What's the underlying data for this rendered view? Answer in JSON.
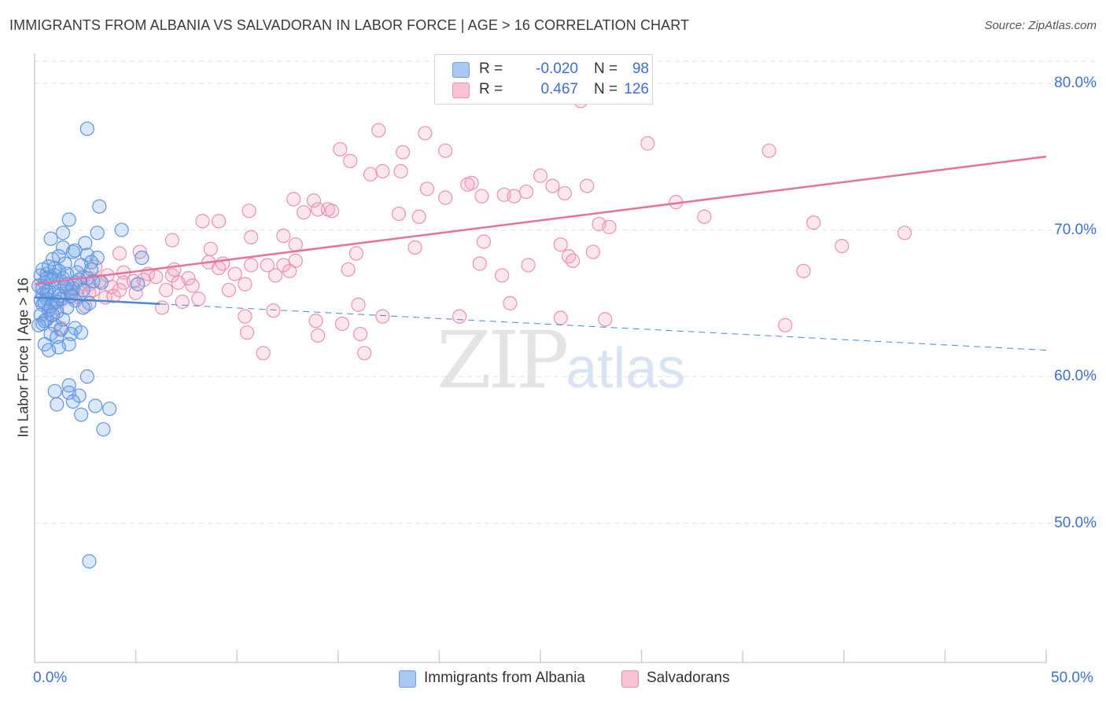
{
  "title": "IMMIGRANTS FROM ALBANIA VS SALVADORAN IN LABOR FORCE | AGE > 16 CORRELATION CHART",
  "source": "Source: ZipAtlas.com",
  "watermark": {
    "zip": "ZIP",
    "atlas": "atlas"
  },
  "legend": {
    "r_label": "R =",
    "n_label": "N =",
    "rows": [
      {
        "r": "-0.020",
        "n": "98",
        "color": "#a9c8f2",
        "stroke": "#6d9de0"
      },
      {
        "r": "0.467",
        "n": "126",
        "color": "#f8c2d3",
        "stroke": "#ec8fae"
      }
    ]
  },
  "colors": {
    "blue": "#4a86d8",
    "pink": "#e8719a",
    "axis_text": "#3b6fd1"
  },
  "chart_data": {
    "type": "scatter",
    "title": "IMMIGRANTS FROM ALBANIA VS SALVADORAN IN LABOR FORCE | AGE > 16 CORRELATION CHART",
    "xlabel": "",
    "ylabel": "In Labor Force | Age > 16",
    "xlim": [
      0,
      50
    ],
    "ylim": [
      40.5,
      81.5
    ],
    "x_ticks": [
      "0.0%",
      "50.0%"
    ],
    "y_ticks": [
      {
        "value": 50,
        "label": "50.0%"
      },
      {
        "value": 60,
        "label": "60.0%"
      },
      {
        "value": 70,
        "label": "70.0%"
      },
      {
        "value": 80,
        "label": "80.0%"
      }
    ],
    "grid": true,
    "legend_position": "top-center",
    "series": [
      {
        "name": "Immigrants from Albania",
        "color": "#4a86d8",
        "trend": {
          "solid": [
            [
              0,
              65.4
            ],
            [
              6.2,
              64.95
            ]
          ],
          "dashed": [
            [
              6.2,
              64.95
            ],
            [
              50,
              61.8
            ]
          ]
        },
        "points": [
          [
            2.6,
            76.9
          ],
          [
            3.2,
            71.6
          ],
          [
            1.7,
            70.7
          ],
          [
            4.3,
            70.0
          ],
          [
            3.1,
            69.8
          ],
          [
            1.4,
            69.8
          ],
          [
            0.8,
            69.4
          ],
          [
            2.5,
            69.1
          ],
          [
            1.4,
            68.8
          ],
          [
            1.9,
            68.5
          ],
          [
            2.0,
            68.6
          ],
          [
            2.6,
            68.3
          ],
          [
            1.2,
            68.2
          ],
          [
            0.9,
            68.0
          ],
          [
            3.1,
            68.1
          ],
          [
            2.8,
            67.8
          ],
          [
            5.3,
            68.1
          ],
          [
            1.5,
            67.7
          ],
          [
            2.3,
            67.6
          ],
          [
            1.0,
            67.4
          ],
          [
            0.4,
            67.3
          ],
          [
            1.2,
            67.2
          ],
          [
            2.8,
            67.3
          ],
          [
            0.6,
            67.0
          ],
          [
            1.6,
            67.0
          ],
          [
            0.3,
            66.9
          ],
          [
            0.8,
            66.8
          ],
          [
            1.0,
            66.9
          ],
          [
            2.6,
            66.7
          ],
          [
            2.2,
            66.6
          ],
          [
            0.5,
            66.4
          ],
          [
            1.3,
            66.5
          ],
          [
            2.0,
            66.4
          ],
          [
            3.3,
            66.4
          ],
          [
            5.1,
            66.3
          ],
          [
            0.2,
            66.2
          ],
          [
            1.5,
            66.1
          ],
          [
            0.7,
            65.9
          ],
          [
            2.4,
            65.9
          ],
          [
            0.4,
            65.6
          ],
          [
            1.0,
            65.6
          ],
          [
            1.8,
            65.8
          ],
          [
            1.3,
            65.3
          ],
          [
            0.6,
            65.3
          ],
          [
            0.3,
            65.2
          ],
          [
            2.0,
            65.2
          ],
          [
            0.9,
            65.0
          ],
          [
            0.5,
            65.0
          ],
          [
            2.7,
            65.0
          ],
          [
            0.4,
            64.9
          ],
          [
            1.6,
            64.7
          ],
          [
            0.7,
            64.5
          ],
          [
            1.1,
            64.4
          ],
          [
            0.3,
            64.2
          ],
          [
            0.6,
            63.9
          ],
          [
            1.4,
            63.9
          ],
          [
            0.4,
            63.6
          ],
          [
            0.2,
            63.5
          ],
          [
            1.0,
            63.5
          ],
          [
            2.0,
            63.3
          ],
          [
            0.8,
            62.9
          ],
          [
            1.8,
            62.9
          ],
          [
            2.3,
            63.0
          ],
          [
            1.1,
            62.7
          ],
          [
            0.5,
            62.2
          ],
          [
            1.7,
            62.2
          ],
          [
            1.2,
            62.0
          ],
          [
            0.7,
            61.8
          ],
          [
            2.6,
            60.0
          ],
          [
            1.7,
            59.4
          ],
          [
            1.0,
            59.0
          ],
          [
            1.7,
            58.9
          ],
          [
            2.2,
            58.7
          ],
          [
            1.1,
            58.1
          ],
          [
            1.9,
            58.3
          ],
          [
            3.0,
            58.0
          ],
          [
            3.7,
            57.8
          ],
          [
            2.3,
            57.4
          ],
          [
            3.4,
            56.4
          ],
          [
            2.7,
            47.4
          ],
          [
            0.9,
            66.6
          ],
          [
            1.9,
            66.0
          ],
          [
            0.6,
            65.8
          ],
          [
            1.2,
            65.5
          ],
          [
            0.8,
            64.8
          ],
          [
            0.5,
            63.8
          ],
          [
            1.4,
            66.7
          ],
          [
            2.1,
            67.1
          ],
          [
            0.7,
            67.5
          ],
          [
            1.6,
            66.3
          ],
          [
            0.4,
            66.0
          ],
          [
            1.1,
            65.1
          ],
          [
            2.9,
            66.5
          ],
          [
            0.9,
            64.2
          ],
          [
            1.8,
            65.5
          ],
          [
            0.6,
            66.7
          ],
          [
            1.3,
            63.2
          ],
          [
            2.4,
            64.7
          ]
        ]
      },
      {
        "name": "Salvadorans",
        "color": "#e8719a",
        "trend": {
          "solid": [
            [
              0,
              66.3
            ],
            [
              50,
              75.0
            ]
          ]
        },
        "points": [
          [
            27.0,
            78.8
          ],
          [
            17.0,
            76.8
          ],
          [
            19.3,
            76.6
          ],
          [
            30.3,
            75.9
          ],
          [
            15.1,
            75.5
          ],
          [
            20.3,
            75.4
          ],
          [
            36.3,
            75.4
          ],
          [
            18.2,
            75.3
          ],
          [
            15.6,
            74.7
          ],
          [
            16.6,
            73.8
          ],
          [
            17.2,
            74.0
          ],
          [
            18.1,
            74.0
          ],
          [
            25.0,
            73.7
          ],
          [
            21.6,
            73.2
          ],
          [
            21.4,
            73.1
          ],
          [
            27.3,
            73.0
          ],
          [
            25.6,
            73.0
          ],
          [
            19.4,
            72.8
          ],
          [
            24.3,
            72.6
          ],
          [
            23.2,
            72.4
          ],
          [
            22.1,
            72.3
          ],
          [
            23.7,
            72.3
          ],
          [
            20.3,
            72.2
          ],
          [
            26.2,
            72.5
          ],
          [
            12.8,
            72.1
          ],
          [
            13.8,
            72.0
          ],
          [
            31.7,
            71.9
          ],
          [
            14.0,
            71.4
          ],
          [
            14.5,
            71.4
          ],
          [
            13.3,
            71.2
          ],
          [
            14.7,
            71.3
          ],
          [
            10.6,
            71.3
          ],
          [
            18.0,
            71.1
          ],
          [
            19.0,
            70.9
          ],
          [
            33.1,
            70.9
          ],
          [
            38.5,
            70.5
          ],
          [
            8.3,
            70.6
          ],
          [
            9.1,
            70.6
          ],
          [
            27.9,
            70.4
          ],
          [
            28.4,
            70.2
          ],
          [
            43.0,
            69.8
          ],
          [
            12.3,
            69.6
          ],
          [
            10.7,
            69.5
          ],
          [
            6.8,
            69.3
          ],
          [
            22.2,
            69.2
          ],
          [
            12.9,
            69.0
          ],
          [
            26.0,
            69.0
          ],
          [
            39.9,
            68.9
          ],
          [
            18.8,
            68.8
          ],
          [
            8.7,
            68.7
          ],
          [
            5.2,
            68.5
          ],
          [
            15.9,
            68.4
          ],
          [
            4.2,
            68.4
          ],
          [
            27.6,
            68.5
          ],
          [
            26.4,
            68.2
          ],
          [
            12.9,
            67.9
          ],
          [
            8.6,
            67.8
          ],
          [
            9.3,
            67.7
          ],
          [
            10.7,
            67.6
          ],
          [
            11.5,
            67.6
          ],
          [
            12.3,
            67.6
          ],
          [
            22.0,
            67.7
          ],
          [
            26.6,
            67.9
          ],
          [
            24.4,
            67.6
          ],
          [
            9.1,
            67.4
          ],
          [
            15.5,
            67.3
          ],
          [
            4.4,
            67.1
          ],
          [
            5.6,
            67.0
          ],
          [
            6.8,
            66.9
          ],
          [
            12.6,
            67.2
          ],
          [
            38.0,
            67.2
          ],
          [
            6.0,
            66.8
          ],
          [
            7.6,
            66.7
          ],
          [
            23.1,
            66.9
          ],
          [
            5.4,
            66.6
          ],
          [
            3.2,
            66.5
          ],
          [
            7.1,
            66.4
          ],
          [
            2.7,
            66.3
          ],
          [
            4.4,
            66.4
          ],
          [
            10.4,
            66.3
          ],
          [
            3.8,
            66.1
          ],
          [
            9.6,
            65.9
          ],
          [
            2.2,
            66.1
          ],
          [
            1.6,
            66.0
          ],
          [
            2.9,
            65.9
          ],
          [
            3.5,
            65.4
          ],
          [
            3.9,
            65.5
          ],
          [
            2.1,
            65.6
          ],
          [
            1.4,
            65.3
          ],
          [
            7.3,
            65.1
          ],
          [
            23.5,
            65.0
          ],
          [
            16.0,
            64.9
          ],
          [
            2.5,
            64.8
          ],
          [
            6.3,
            64.7
          ],
          [
            11.8,
            64.5
          ],
          [
            10.4,
            64.1
          ],
          [
            0.8,
            64.2
          ],
          [
            17.2,
            64.1
          ],
          [
            21.0,
            64.1
          ],
          [
            26.0,
            64.0
          ],
          [
            13.9,
            63.8
          ],
          [
            15.2,
            63.6
          ],
          [
            28.2,
            63.9
          ],
          [
            37.1,
            63.5
          ],
          [
            1.3,
            63.3
          ],
          [
            10.5,
            63.0
          ],
          [
            16.1,
            62.9
          ],
          [
            14.0,
            62.8
          ],
          [
            16.3,
            61.6
          ],
          [
            11.3,
            61.6
          ],
          [
            2.4,
            66.8
          ],
          [
            3.0,
            67.5
          ],
          [
            4.9,
            66.5
          ],
          [
            6.5,
            65.9
          ],
          [
            5.0,
            65.7
          ],
          [
            8.1,
            65.3
          ],
          [
            1.9,
            65.4
          ],
          [
            0.6,
            65.6
          ],
          [
            4.2,
            65.9
          ],
          [
            2.7,
            65.7
          ],
          [
            1.1,
            64.7
          ],
          [
            3.6,
            66.9
          ],
          [
            7.8,
            66.2
          ],
          [
            9.9,
            67.0
          ],
          [
            11.9,
            66.9
          ],
          [
            6.9,
            67.3
          ]
        ]
      }
    ]
  },
  "bottom_legend": [
    {
      "label": "Immigrants from Albania",
      "color": "#a9c8f2",
      "stroke": "#6d9de0"
    },
    {
      "label": "Salvadorans",
      "color": "#f8c2d3",
      "stroke": "#ec8fae"
    }
  ]
}
